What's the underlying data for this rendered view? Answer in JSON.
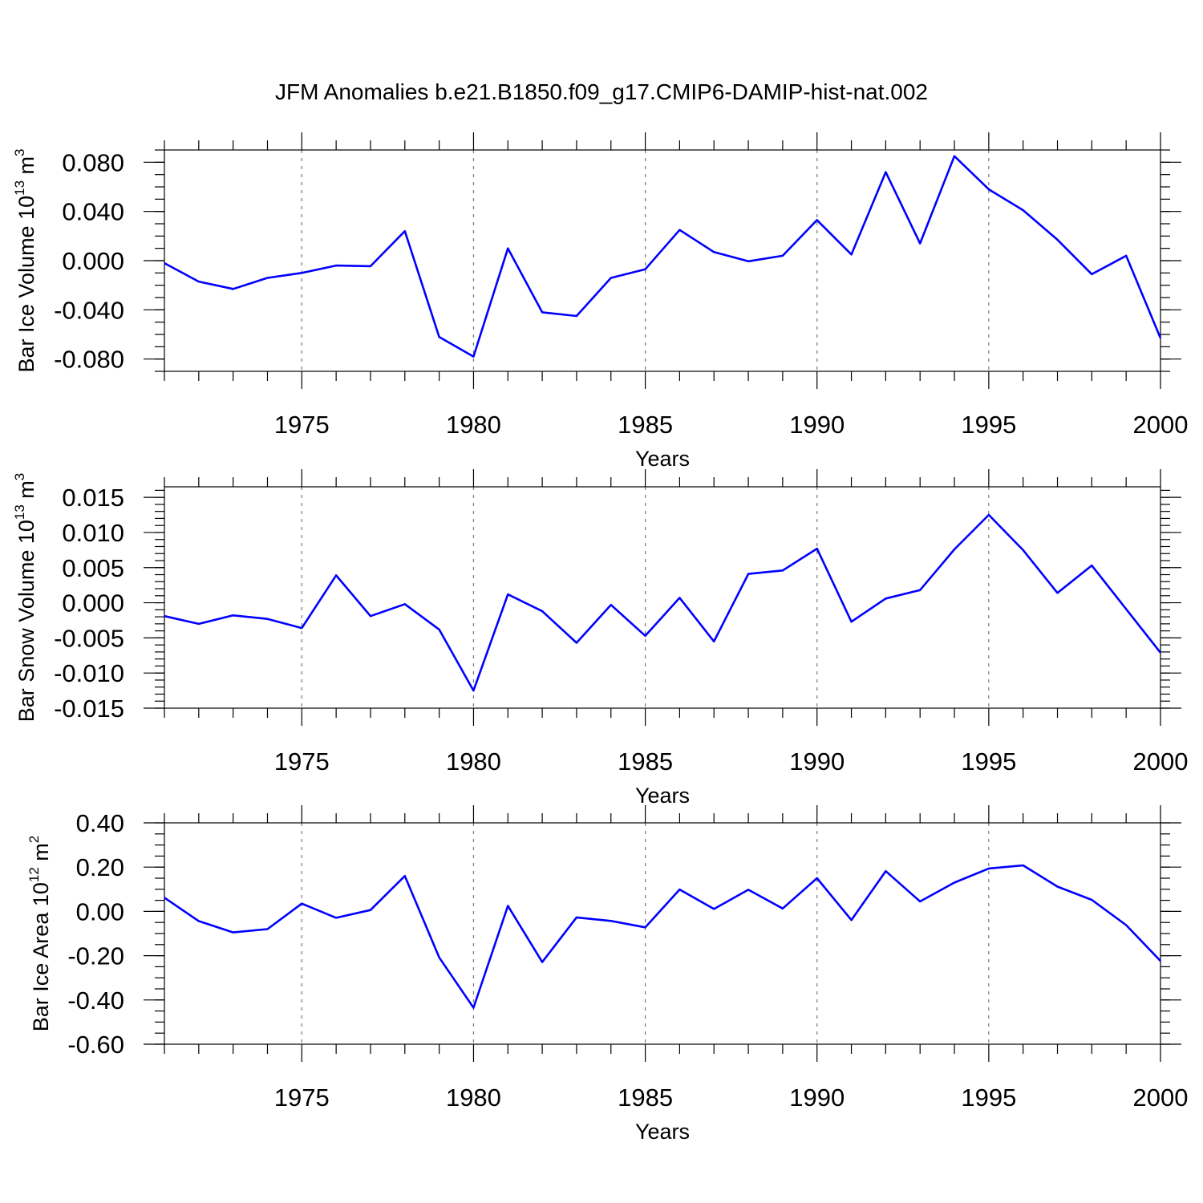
{
  "title": "JFM Anomalies b.e21.B1850.f09_g17.CMIP6-DAMIP-hist-nat.002",
  "colors": {
    "line": "#0000ff",
    "axis": "#000000",
    "grid": "#777777"
  },
  "chart_data": [
    {
      "type": "line",
      "xlabel": "Years",
      "ylabel_text": "Bar Ice Volume 10",
      "ylabel_exp": "13",
      "ylabel_unit": " m",
      "ylabel_unit_exp": "3",
      "xlim": [
        1971,
        2000
      ],
      "ylim": [
        -0.09,
        0.09
      ],
      "x_ticks": [
        1975,
        1980,
        1985,
        1990,
        1995,
        2000
      ],
      "y_ticks": [
        -0.08,
        -0.04,
        0.0,
        0.04,
        0.08
      ],
      "y_tick_labels": [
        "-0.080",
        "-0.040",
        "0.000",
        "0.040",
        "0.080"
      ],
      "y_minor_step": 0.01,
      "grid_x": [
        1975,
        1980,
        1985,
        1990,
        1995
      ],
      "x": [
        1971,
        1972,
        1973,
        1974,
        1975,
        1976,
        1977,
        1978,
        1979,
        1980,
        1981,
        1982,
        1983,
        1984,
        1985,
        1986,
        1987,
        1988,
        1989,
        1990,
        1991,
        1992,
        1993,
        1994,
        1995,
        1996,
        1997,
        1998,
        1999,
        2000
      ],
      "values": [
        -0.002,
        -0.017,
        -0.023,
        -0.014,
        -0.01,
        -0.004,
        -0.0045,
        0.024,
        -0.062,
        -0.078,
        0.01,
        -0.042,
        -0.045,
        -0.014,
        -0.007,
        0.025,
        0.007,
        -0.0005,
        0.004,
        0.033,
        0.005,
        0.072,
        0.014,
        0.085,
        0.058,
        0.041,
        0.017,
        -0.011,
        0.004,
        -0.063
      ]
    },
    {
      "type": "line",
      "xlabel": "Years",
      "ylabel_text": "Bar Snow Volume 10",
      "ylabel_exp": "13",
      "ylabel_unit": " m",
      "ylabel_unit_exp": "3",
      "xlim": [
        1971,
        2000
      ],
      "ylim": [
        -0.015,
        0.0165
      ],
      "x_ticks": [
        1975,
        1980,
        1985,
        1990,
        1995,
        2000
      ],
      "y_ticks": [
        -0.015,
        -0.01,
        -0.005,
        0.0,
        0.005,
        0.01,
        0.015
      ],
      "y_tick_labels": [
        "-0.015",
        "-0.010",
        "-0.005",
        "0.000",
        "0.005",
        "0.010",
        "0.015"
      ],
      "y_minor_step": 0.001,
      "grid_x": [
        1975,
        1980,
        1985,
        1990,
        1995
      ],
      "x": [
        1971,
        1972,
        1973,
        1974,
        1975,
        1976,
        1977,
        1978,
        1979,
        1980,
        1981,
        1982,
        1983,
        1984,
        1985,
        1986,
        1987,
        1988,
        1989,
        1990,
        1991,
        1992,
        1993,
        1994,
        1995,
        1996,
        1997,
        1998,
        1999,
        2000
      ],
      "values": [
        -0.0019,
        -0.003,
        -0.0018,
        -0.0023,
        -0.0036,
        0.0039,
        -0.0019,
        -0.0002,
        -0.0038,
        -0.0125,
        0.0012,
        -0.0012,
        -0.0057,
        -0.0003,
        -0.0047,
        0.0007,
        -0.0055,
        0.0041,
        0.0046,
        0.0077,
        -0.0027,
        0.0006,
        0.0018,
        0.0076,
        0.0125,
        0.0075,
        0.0014,
        0.0053,
        -0.0009,
        -0.0071
      ]
    },
    {
      "type": "line",
      "xlabel": "Years",
      "ylabel_text": "Bar Ice Area 10",
      "ylabel_exp": "12",
      "ylabel_unit": " m",
      "ylabel_unit_exp": "2",
      "xlim": [
        1971,
        2000
      ],
      "ylim": [
        -0.6,
        0.4
      ],
      "x_ticks": [
        1975,
        1980,
        1985,
        1990,
        1995,
        2000
      ],
      "y_ticks": [
        -0.6,
        -0.4,
        -0.2,
        0.0,
        0.2,
        0.4
      ],
      "y_tick_labels": [
        "-0.60",
        "-0.40",
        "-0.20",
        "0.00",
        "0.20",
        "0.40"
      ],
      "y_minor_step": 0.05,
      "grid_x": [
        1975,
        1980,
        1985,
        1990,
        1995
      ],
      "x": [
        1971,
        1972,
        1973,
        1974,
        1975,
        1976,
        1977,
        1978,
        1979,
        1980,
        1981,
        1982,
        1983,
        1984,
        1985,
        1986,
        1987,
        1988,
        1989,
        1990,
        1991,
        1992,
        1993,
        1994,
        1995,
        1996,
        1997,
        1998,
        1999,
        2000
      ],
      "values": [
        0.062,
        -0.044,
        -0.095,
        -0.08,
        0.035,
        -0.029,
        0.006,
        0.16,
        -0.208,
        -0.435,
        0.025,
        -0.229,
        -0.027,
        -0.043,
        -0.072,
        0.099,
        0.011,
        0.098,
        0.013,
        0.15,
        -0.039,
        0.182,
        0.045,
        0.13,
        0.194,
        0.208,
        0.112,
        0.052,
        -0.062,
        -0.224
      ]
    }
  ]
}
